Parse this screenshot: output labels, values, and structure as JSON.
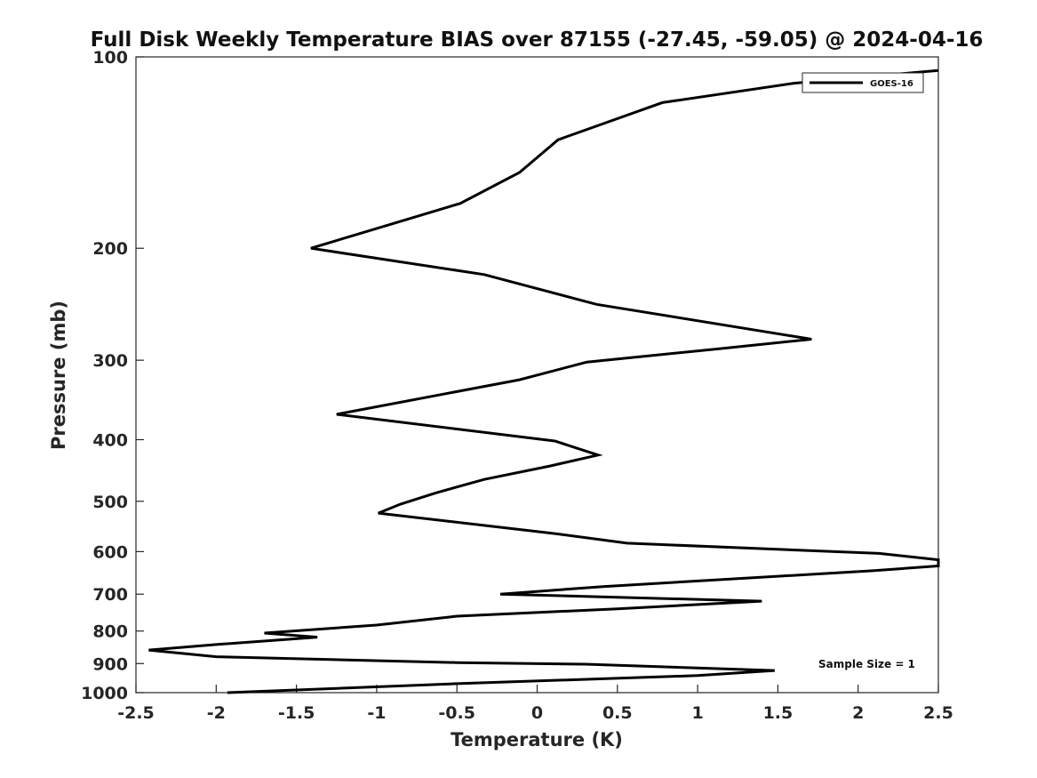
{
  "chart_data": {
    "type": "line",
    "title": "Full Disk Weekly Temperature BIAS over 87155 (-27.45, -59.05) @ 2024-04-16",
    "xlabel": "Temperature (K)",
    "ylabel": "Pressure (mb)",
    "xlim": [
      -2.5,
      2.5
    ],
    "ylim": [
      100,
      1000
    ],
    "yscale": "log",
    "y_reversed": true,
    "grid": false,
    "xticks": [
      -2.5,
      -2,
      -1.5,
      -1,
      -0.5,
      0,
      0.5,
      1,
      1.5,
      2,
      2.5
    ],
    "xtick_labels": [
      "-2.5",
      "-2",
      "-1.5",
      "-1",
      "-0.5",
      "0",
      "0.5",
      "1",
      "1.5",
      "2",
      "2.5"
    ],
    "yticks": [
      100,
      200,
      300,
      400,
      500,
      600,
      700,
      800,
      900,
      1000
    ],
    "ytick_labels": [
      "100",
      "200",
      "300",
      "400",
      "500",
      "600",
      "700",
      "800",
      "900",
      "1000"
    ],
    "legend_position": "top-right",
    "annotation": "Sample Size = 1",
    "series": [
      {
        "name": "GOES-16",
        "color": "#000000",
        "x": [
          2.5,
          1.6,
          0.78,
          0.13,
          -0.11,
          -0.48,
          -1.41,
          -0.33,
          0.37,
          1.71,
          1.12,
          0.31,
          -0.11,
          -1.25,
          0.11,
          0.38,
          0.08,
          -0.33,
          -0.63,
          -0.85,
          -0.99,
          0.11,
          0.56,
          2.13,
          2.5,
          2.5,
          2.09,
          0.41,
          -0.23,
          1.4,
          0.5,
          -0.5,
          -1.0,
          -1.7,
          -1.37,
          -2.0,
          -2.42,
          -2.0,
          -0.5,
          0.3,
          1.48,
          1.0,
          -0.5,
          -1.93
        ],
        "y": [
          105,
          110,
          118,
          135,
          152,
          170,
          200,
          220,
          245,
          278,
          288,
          302,
          322,
          365,
          402,
          423,
          440,
          462,
          485,
          505,
          522,
          562,
          582,
          604,
          618,
          632,
          643,
          681,
          700,
          718,
          738,
          758,
          783,
          806,
          818,
          840,
          857,
          878,
          897,
          902,
          923,
          940,
          968,
          1000
        ]
      }
    ]
  }
}
